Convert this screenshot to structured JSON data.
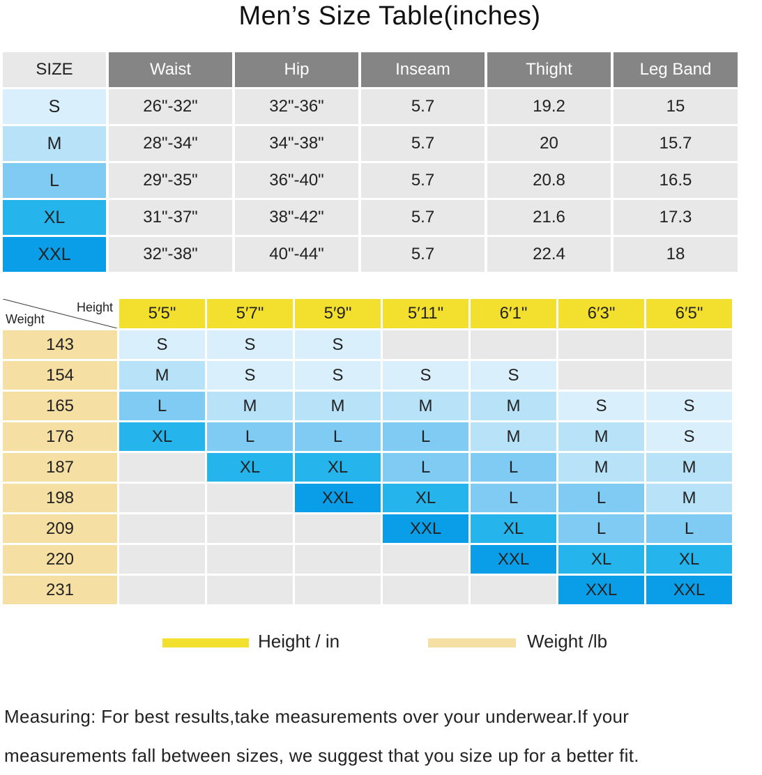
{
  "title": "Men’s  Size Table(inches)",
  "size_table": {
    "headers": [
      "SIZE",
      "Waist",
      "Hip",
      "Inseam",
      "Thight",
      "Leg Band"
    ],
    "rows": [
      {
        "size": "S",
        "color": "#d9effc",
        "values": [
          "26\"-32\"",
          "32\"-36\"",
          "5.7",
          "19.2",
          "15"
        ]
      },
      {
        "size": "M",
        "color": "#b8e2f8",
        "values": [
          "28\"-34\"",
          "34\"-38\"",
          "5.7",
          "20",
          "15.7"
        ]
      },
      {
        "size": "L",
        "color": "#7fcbf3",
        "values": [
          "29\"-35\"",
          "36\"-40\"",
          "5.7",
          "20.8",
          "16.5"
        ]
      },
      {
        "size": "XL",
        "color": "#25b5ec",
        "values": [
          "31\"-37\"",
          "38\"-42\"",
          "5.7",
          "21.6",
          "17.3"
        ]
      },
      {
        "size": "XXL",
        "color": "#0b9ee8",
        "values": [
          "32\"-38\"",
          "40\"-44\"",
          "5.7",
          "22.4",
          "18"
        ]
      }
    ]
  },
  "hw_table": {
    "corner_height_label": "Height",
    "corner_weight_label": "Weight",
    "heights": [
      "5′5\"",
      "5′7\"",
      "5′9\"",
      "5′11\"",
      "6′1\"",
      "6′3\"",
      "6′5\""
    ],
    "weights": [
      "143",
      "154",
      "165",
      "176",
      "187",
      "198",
      "209",
      "220",
      "231"
    ],
    "grid": [
      [
        "S",
        "S",
        "S",
        "",
        "",
        "",
        ""
      ],
      [
        "M",
        "S",
        "S",
        "S",
        "S",
        "",
        ""
      ],
      [
        "L",
        "M",
        "M",
        "M",
        "M",
        "S",
        "S"
      ],
      [
        "XL",
        "L",
        "L",
        "L",
        "M",
        "M",
        "S"
      ],
      [
        "",
        "XL",
        "XL",
        "L",
        "L",
        "M",
        "M"
      ],
      [
        "",
        "",
        "XXL",
        "XL",
        "L",
        "L",
        "M"
      ],
      [
        "",
        "",
        "",
        "XXL",
        "XL",
        "L",
        "L"
      ],
      [
        "",
        "",
        "",
        "",
        "XXL",
        "XL",
        "XL"
      ],
      [
        "",
        "",
        "",
        "",
        "",
        "XXL",
        "XXL"
      ]
    ],
    "size_colors": {
      "S": "#d9effc",
      "M": "#b8e2f8",
      "L": "#7fcbf3",
      "XL": "#25b5ec",
      "XXL": "#0b9ee8",
      "": "#e8e8e8"
    }
  },
  "legend": {
    "height_label": "Height / in",
    "height_color": "#f3df2d",
    "weight_label": "Weight /lb",
    "weight_color": "#f6dfa3"
  },
  "note": {
    "line1": "Measuring:  For best results,take measurements over your underwear.If your",
    "line2": "measurements fall between sizes, we suggest that you size up for a better fit."
  }
}
